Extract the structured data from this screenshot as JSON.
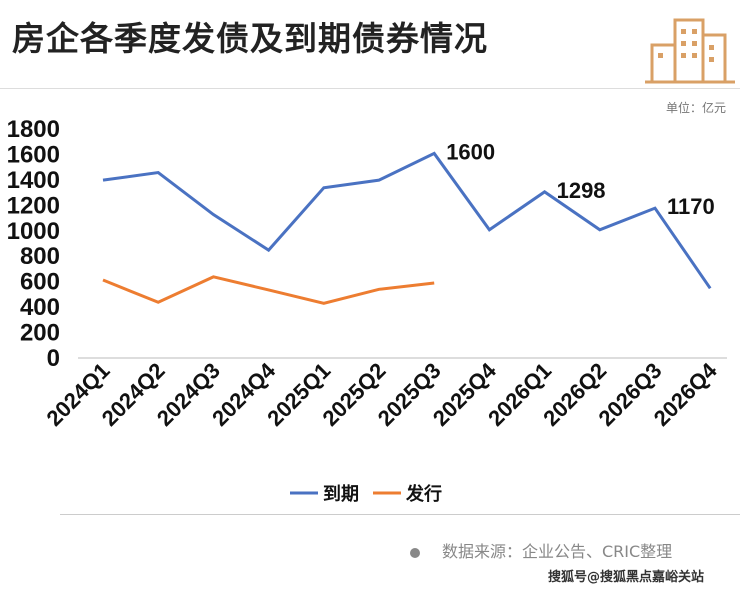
{
  "title": "房企各季度发债及到期债券情况",
  "unit": "单位：亿元",
  "source": "数据来源：企业公告、CRIC整理",
  "watermark": "搜狐号@搜狐黑点嘉峪关站",
  "colors": {
    "due": "#4a72c2",
    "issue": "#ed7d31"
  },
  "chart_data": {
    "type": "line",
    "categories": [
      "2024Q1",
      "2024Q2",
      "2024Q3",
      "2024Q4",
      "2025Q1",
      "2025Q2",
      "2025Q3",
      "2025Q4",
      "2026Q1",
      "2026Q2",
      "2026Q3",
      "2026Q4"
    ],
    "series": [
      {
        "name": "到期",
        "values": [
          1390,
          1450,
          1120,
          840,
          1330,
          1390,
          1600,
          1000,
          1298,
          1000,
          1170,
          540
        ]
      },
      {
        "name": "发行",
        "values": [
          605,
          430,
          630,
          527,
          422,
          532,
          582,
          null,
          null,
          null,
          null,
          null
        ]
      }
    ],
    "data_labels": [
      {
        "category": "2025Q3",
        "text": "1600"
      },
      {
        "category": "2026Q1",
        "text": "1298"
      },
      {
        "category": "2026Q3",
        "text": "1170"
      }
    ],
    "yticks": [
      "0",
      "200",
      "400",
      "600",
      "800",
      "1000",
      "1200",
      "1400",
      "1600",
      "1800"
    ],
    "ylim": [
      0,
      1800
    ],
    "legend": "bottom",
    "grid": false
  }
}
